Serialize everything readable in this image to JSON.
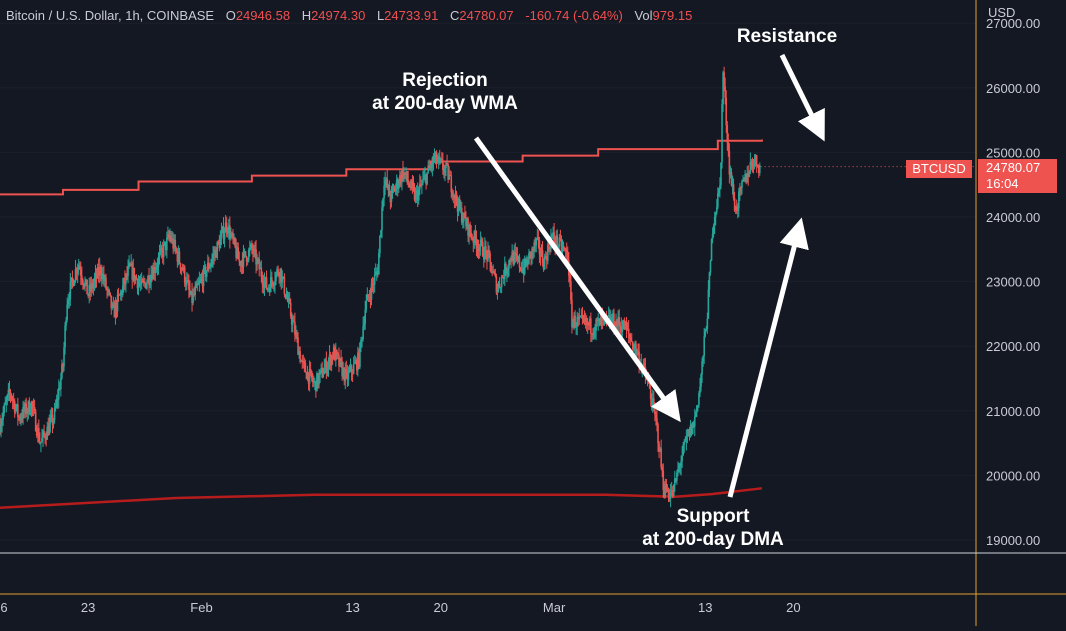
{
  "header": {
    "symbol": "Bitcoin / U.S. Dollar, 1h, COINBASE",
    "open_label": "O",
    "open": "24946.58",
    "high_label": "H",
    "high": "24974.30",
    "low_label": "L",
    "low": "24733.91",
    "close_label": "C",
    "close": "24780.07",
    "change": "-160.74 (-0.64%)",
    "vol_label": "Vol",
    "vol": "979.15"
  },
  "currency": "USD",
  "ticker": "BTCUSD",
  "last_price": "24780.07",
  "countdown": "16:04",
  "colors": {
    "up": "#26a69a",
    "down": "#ef5350",
    "wma": "#ef5350",
    "dma": "#b71c1c",
    "arrow": "#ffffff",
    "bg": "#141823"
  },
  "annotations": {
    "rejection_line1": "Rejection",
    "rejection_line2": "at 200-day WMA",
    "resistance": "Resistance",
    "support_line1": "Support",
    "support_line2": "at 200-day DMA"
  },
  "chart_data": {
    "type": "candlestick",
    "ylim": [
      18800,
      27300
    ],
    "yticks": [
      "27000.00",
      "26000.00",
      "25000.00",
      "24000.00",
      "23000.00",
      "22000.00",
      "21000.00",
      "20000.00",
      "19000.00"
    ],
    "ytick_values": [
      27000,
      26000,
      25000,
      24000,
      23000,
      22000,
      21000,
      20000,
      19000
    ],
    "xticks": [
      "6",
      "23",
      "Feb",
      "13",
      "20",
      "Mar",
      "13",
      "20"
    ],
    "xtick_days": [
      16,
      23,
      32,
      44,
      51,
      60,
      72,
      79
    ],
    "xlim_days": [
      16,
      93.5
    ],
    "price_path": [
      [
        16.0,
        20800
      ],
      [
        16.8,
        21300
      ],
      [
        17.5,
        20900
      ],
      [
        18.5,
        21100
      ],
      [
        19.2,
        20500
      ],
      [
        20.3,
        20900
      ],
      [
        21.0,
        21700
      ],
      [
        21.3,
        22700
      ],
      [
        22.2,
        23300
      ],
      [
        23.0,
        22800
      ],
      [
        24.0,
        23200
      ],
      [
        25.0,
        22500
      ],
      [
        26.3,
        23200
      ],
      [
        27.3,
        22900
      ],
      [
        28.5,
        23300
      ],
      [
        29.5,
        23700
      ],
      [
        30.5,
        23200
      ],
      [
        31.2,
        22700
      ],
      [
        32.2,
        23100
      ],
      [
        33.2,
        23500
      ],
      [
        34.0,
        23900
      ],
      [
        35.0,
        23300
      ],
      [
        36.0,
        23500
      ],
      [
        37.2,
        22900
      ],
      [
        38.2,
        23200
      ],
      [
        39.2,
        22400
      ],
      [
        40.0,
        21700
      ],
      [
        41.0,
        21400
      ],
      [
        42.5,
        21900
      ],
      [
        43.5,
        21500
      ],
      [
        44.5,
        21800
      ],
      [
        45.0,
        22600
      ],
      [
        46.0,
        23200
      ],
      [
        46.5,
        24600
      ],
      [
        47.0,
        24300
      ],
      [
        48.0,
        24700
      ],
      [
        49.0,
        24300
      ],
      [
        50.5,
        24900
      ],
      [
        51.5,
        24700
      ],
      [
        52.5,
        24100
      ],
      [
        53.5,
        23700
      ],
      [
        54.7,
        23400
      ],
      [
        55.5,
        22900
      ],
      [
        56.6,
        23400
      ],
      [
        57.6,
        23200
      ],
      [
        58.6,
        23600
      ],
      [
        59.2,
        23300
      ],
      [
        59.8,
        23700
      ],
      [
        61.1,
        23400
      ],
      [
        61.4,
        22400
      ],
      [
        63.0,
        22300
      ],
      [
        64.5,
        22400
      ],
      [
        65.6,
        22300
      ],
      [
        66.6,
        21900
      ],
      [
        67.5,
        21400
      ],
      [
        68.2,
        20700
      ],
      [
        68.7,
        19800
      ],
      [
        69.4,
        19700
      ],
      [
        70.0,
        20200
      ],
      [
        70.6,
        20600
      ],
      [
        71.1,
        20800
      ],
      [
        71.6,
        21400
      ],
      [
        72.2,
        22600
      ],
      [
        72.6,
        23900
      ],
      [
        73.2,
        24500
      ],
      [
        73.4,
        26300
      ],
      [
        73.9,
        24800
      ],
      [
        74.4,
        24100
      ],
      [
        75.0,
        24500
      ],
      [
        75.8,
        24900
      ],
      [
        76.4,
        24780
      ]
    ],
    "wma_steps": [
      [
        16.0,
        24350
      ],
      [
        21.0,
        24420
      ],
      [
        27.0,
        24550
      ],
      [
        36.0,
        24640
      ],
      [
        43.5,
        24740
      ],
      [
        50.2,
        24860
      ],
      [
        57.5,
        24950
      ],
      [
        63.5,
        25050
      ],
      [
        73.0,
        25180
      ],
      [
        76.5,
        25200
      ]
    ],
    "dma_points": [
      [
        16.0,
        19500
      ],
      [
        30.0,
        19650
      ],
      [
        41.0,
        19700
      ],
      [
        54.0,
        19700
      ],
      [
        64.0,
        19700
      ],
      [
        69.6,
        19670
      ],
      [
        72.5,
        19710
      ],
      [
        76.5,
        19800
      ]
    ]
  }
}
